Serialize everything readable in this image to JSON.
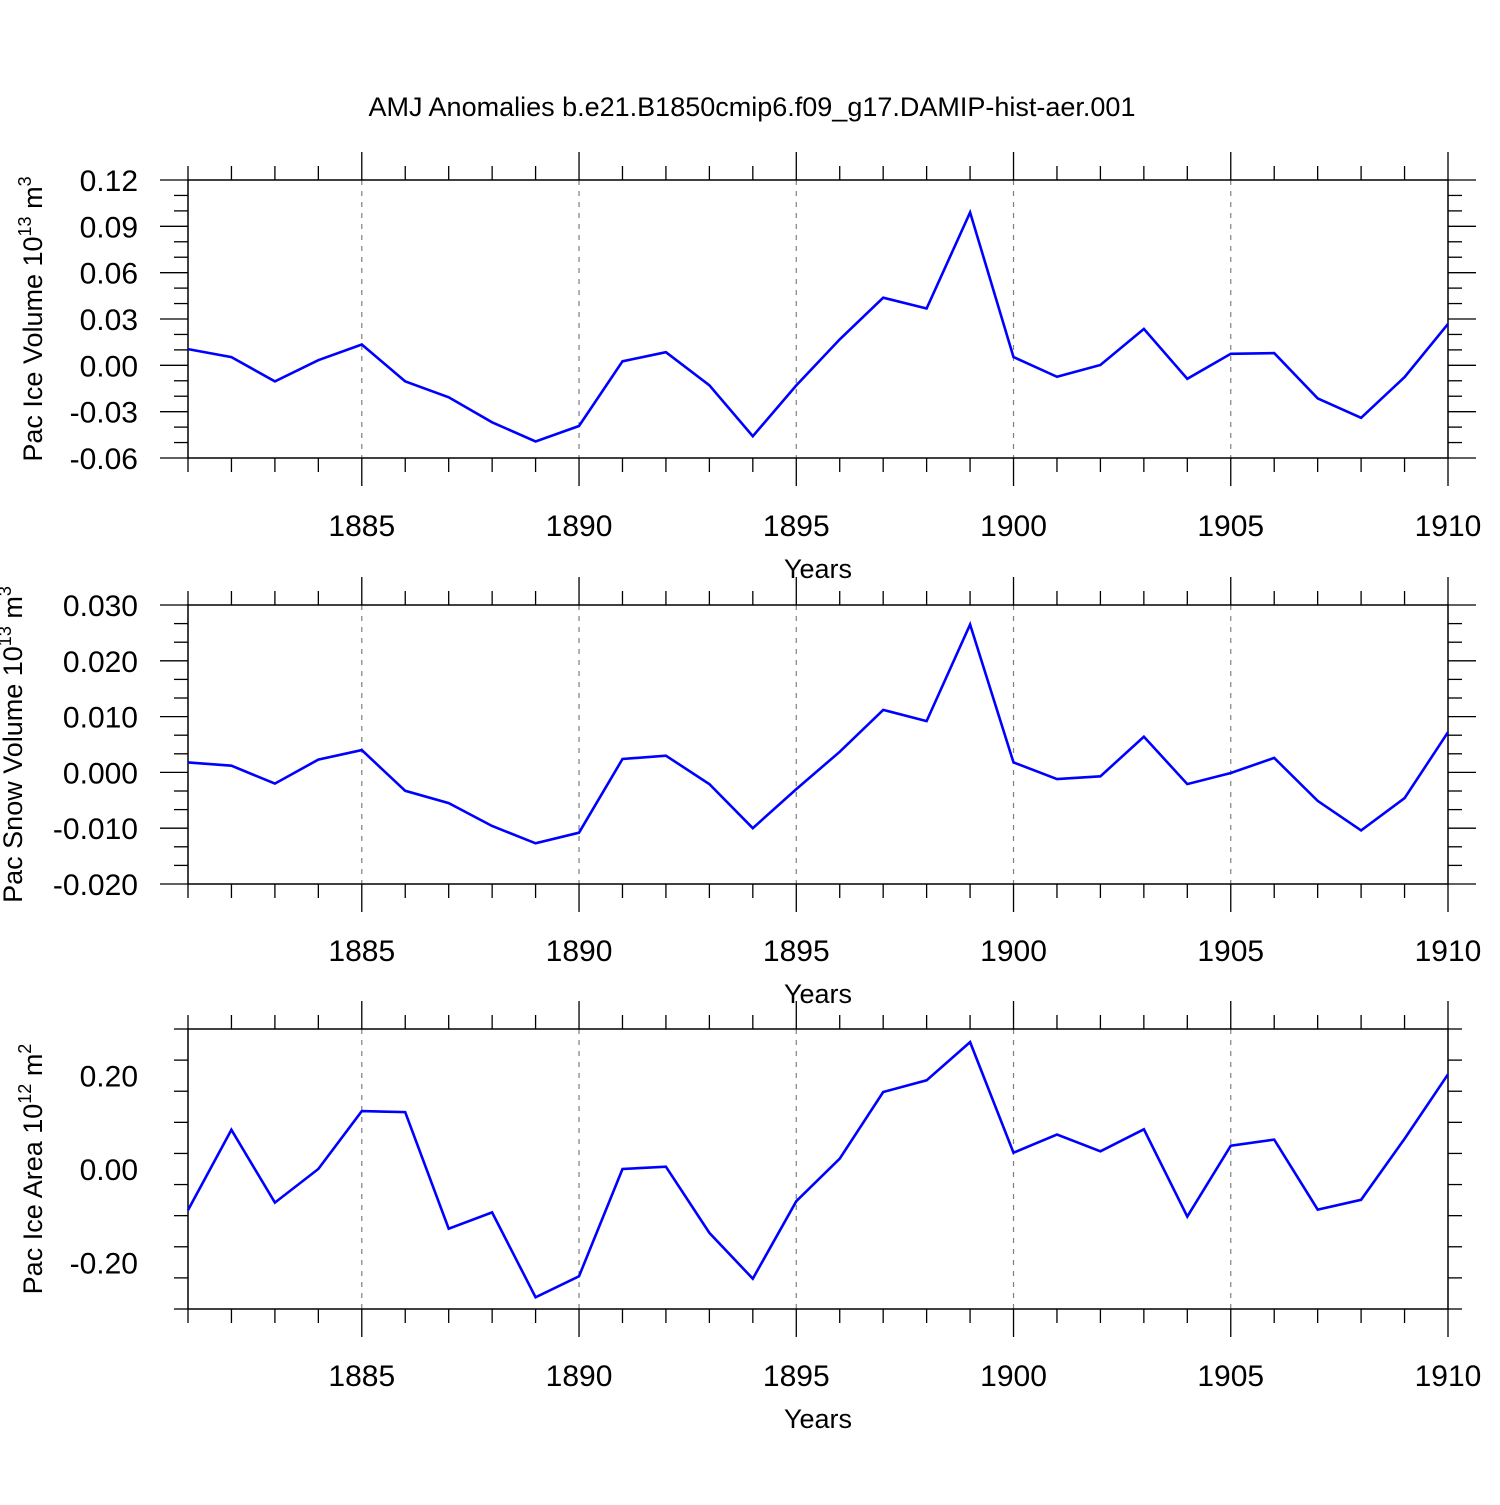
{
  "figure": {
    "title": "AMJ Anomalies b.e21.B1850cmip6.f09_g17.DAMIP-hist-aer.001"
  },
  "colors": {
    "line": "#0000ff",
    "axis": "#000000",
    "gridline": "#808080"
  },
  "chart_data": [
    {
      "type": "line",
      "ylabel": "Pac Ice Volume 10",
      "ylabel_exp": "13",
      "ylabel_unit": " m",
      "ylabel_unit_exp": "3",
      "xlabel": "Years",
      "xlim": [
        1881,
        1910
      ],
      "ylim": [
        -0.06,
        0.12
      ],
      "yticks": [
        "0.12",
        "0.09",
        "0.06",
        "0.03",
        "0.00",
        "-0.03",
        "-0.06"
      ],
      "yticks_values": [
        0.12,
        0.09,
        0.06,
        0.03,
        0.0,
        -0.03,
        -0.06
      ],
      "xticks": [
        "1885",
        "1890",
        "1895",
        "1900",
        "1905",
        "1910"
      ],
      "xticks_values": [
        1885,
        1890,
        1895,
        1900,
        1905,
        1910
      ],
      "grid": "vertical-dashed",
      "x": [
        1881,
        1882,
        1883,
        1884,
        1885,
        1886,
        1887,
        1888,
        1889,
        1890,
        1891,
        1892,
        1893,
        1894,
        1895,
        1896,
        1897,
        1898,
        1899,
        1900,
        1901,
        1902,
        1903,
        1904,
        1905,
        1906,
        1907,
        1908,
        1909,
        1910
      ],
      "values": [
        0.0105,
        0.0053,
        -0.0104,
        0.0033,
        0.0135,
        -0.0104,
        -0.0207,
        -0.0369,
        -0.0493,
        -0.0393,
        0.0026,
        0.0085,
        -0.0129,
        -0.0459,
        -0.013,
        0.0168,
        0.0438,
        0.0368,
        0.099,
        0.0054,
        -0.0074,
        0.0002,
        0.0236,
        -0.0087,
        0.0075,
        0.0079,
        -0.0214,
        -0.034,
        -0.0076,
        0.0268
      ]
    },
    {
      "type": "line",
      "ylabel": "Pac Snow Volume 10",
      "ylabel_exp": "13",
      "ylabel_unit": " m",
      "ylabel_unit_exp": "3",
      "xlabel": "Years",
      "xlim": [
        1881,
        1910
      ],
      "ylim": [
        -0.02,
        0.03
      ],
      "yticks": [
        "0.030",
        "0.020",
        "0.010",
        "0.000",
        "-0.010",
        "-0.020"
      ],
      "yticks_values": [
        0.03,
        0.02,
        0.01,
        0.0,
        -0.01,
        -0.02
      ],
      "xticks": [
        "1885",
        "1890",
        "1895",
        "1900",
        "1905",
        "1910"
      ],
      "xticks_values": [
        1885,
        1890,
        1895,
        1900,
        1905,
        1910
      ],
      "grid": "vertical-dashed",
      "x": [
        1881,
        1882,
        1883,
        1884,
        1885,
        1886,
        1887,
        1888,
        1889,
        1890,
        1891,
        1892,
        1893,
        1894,
        1895,
        1896,
        1897,
        1898,
        1899,
        1900,
        1901,
        1902,
        1903,
        1904,
        1905,
        1906,
        1907,
        1908,
        1909,
        1910
      ],
      "values": [
        0.0018,
        0.0012,
        -0.002,
        0.0023,
        0.004,
        -0.0033,
        -0.0055,
        -0.0096,
        -0.0127,
        -0.0108,
        0.0024,
        0.003,
        -0.0021,
        -0.01,
        -0.003,
        0.0037,
        0.0112,
        0.0092,
        0.0265,
        0.0018,
        -0.0012,
        -0.0007,
        0.0064,
        -0.0021,
        -0.0001,
        0.0026,
        -0.0051,
        -0.0104,
        -0.0046,
        0.0072
      ]
    },
    {
      "type": "line",
      "ylabel": "Pac Ice Area 10",
      "ylabel_exp": "12",
      "ylabel_unit": " m",
      "ylabel_unit_exp": "2",
      "xlabel": "Years",
      "xlim": [
        1881,
        1910
      ],
      "ylim": [
        -0.3,
        0.3
      ],
      "yticks": [
        "0.20",
        "0.00",
        "-0.20"
      ],
      "yticks_values": [
        0.2,
        0.0,
        -0.2
      ],
      "xticks": [
        "1885",
        "1890",
        "1895",
        "1900",
        "1905",
        "1910"
      ],
      "xticks_values": [
        1885,
        1890,
        1895,
        1900,
        1905,
        1910
      ],
      "grid": "vertical-dashed",
      "x": [
        1881,
        1882,
        1883,
        1884,
        1885,
        1886,
        1887,
        1888,
        1889,
        1890,
        1891,
        1892,
        1893,
        1894,
        1895,
        1896,
        1897,
        1898,
        1899,
        1900,
        1901,
        1902,
        1903,
        1904,
        1905,
        1906,
        1907,
        1908,
        1909,
        1910
      ],
      "values": [
        -0.088,
        0.084,
        -0.072,
        0.0,
        0.124,
        0.122,
        -0.128,
        -0.093,
        -0.275,
        -0.23,
        0.0,
        0.005,
        -0.137,
        -0.235,
        -0.069,
        0.022,
        0.165,
        0.19,
        0.272,
        0.035,
        0.074,
        0.038,
        0.085,
        -0.102,
        0.05,
        0.063,
        -0.087,
        -0.066,
        0.065,
        0.203
      ]
    }
  ]
}
